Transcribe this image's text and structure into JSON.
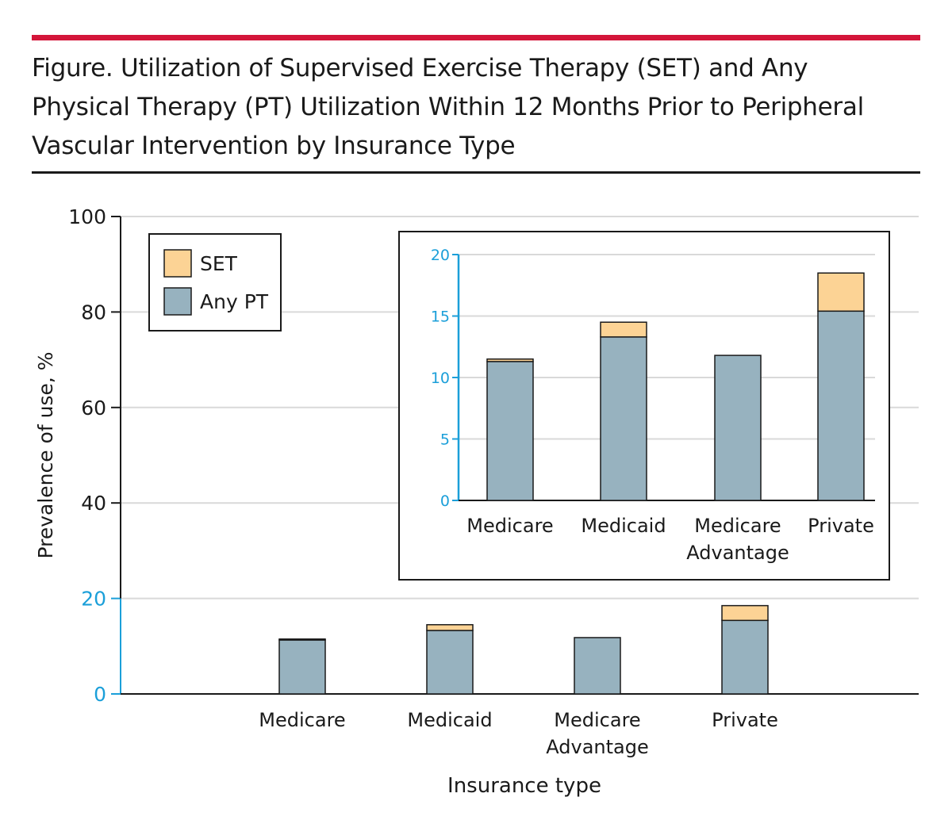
{
  "figure": {
    "title": "Figure. Utilization of Supervised Exercise Therapy (SET) and Any Physical Therapy (PT) Utilization Within 12 Months Prior to Peripheral Vascular Intervention by Insurance Type"
  },
  "colors": {
    "accent_rule": "#d4163a",
    "set_color": "#fcd395",
    "pt_color": "#97b2bf",
    "inset_axis": "#1b9fd9"
  },
  "chart_data": [
    {
      "type": "bar",
      "stacked": true,
      "categories": [
        [
          "Medicare"
        ],
        [
          "Medicaid"
        ],
        [
          "Medicare",
          "Advantage"
        ],
        [
          "Private"
        ]
      ],
      "series": [
        {
          "name": "Any PT",
          "values": [
            11.3,
            13.3,
            11.8,
            15.4
          ]
        },
        {
          "name": "SET",
          "values": [
            0.2,
            1.2,
            0.0,
            3.1
          ]
        }
      ],
      "xlabel": "Insurance type",
      "ylabel": "Prevalence of use, %",
      "ylim": [
        0,
        100
      ],
      "yticks": [
        "0",
        "20",
        "40",
        "60",
        "80",
        "100"
      ],
      "grid": true,
      "legend": {
        "position": "top-left",
        "entries": [
          "SET",
          "Any PT"
        ]
      }
    },
    {
      "type": "bar",
      "stacked": true,
      "inset": true,
      "categories": [
        [
          "Medicare"
        ],
        [
          "Medicaid"
        ],
        [
          "Medicare",
          "Advantage"
        ],
        [
          "Private"
        ]
      ],
      "series": [
        {
          "name": "Any PT",
          "values": [
            11.3,
            13.3,
            11.8,
            15.4
          ]
        },
        {
          "name": "SET",
          "values": [
            0.2,
            1.2,
            0.0,
            3.1
          ]
        }
      ],
      "ylim": [
        0,
        20
      ],
      "yticks": [
        "0",
        "5",
        "10",
        "15",
        "20"
      ],
      "grid": true
    }
  ]
}
